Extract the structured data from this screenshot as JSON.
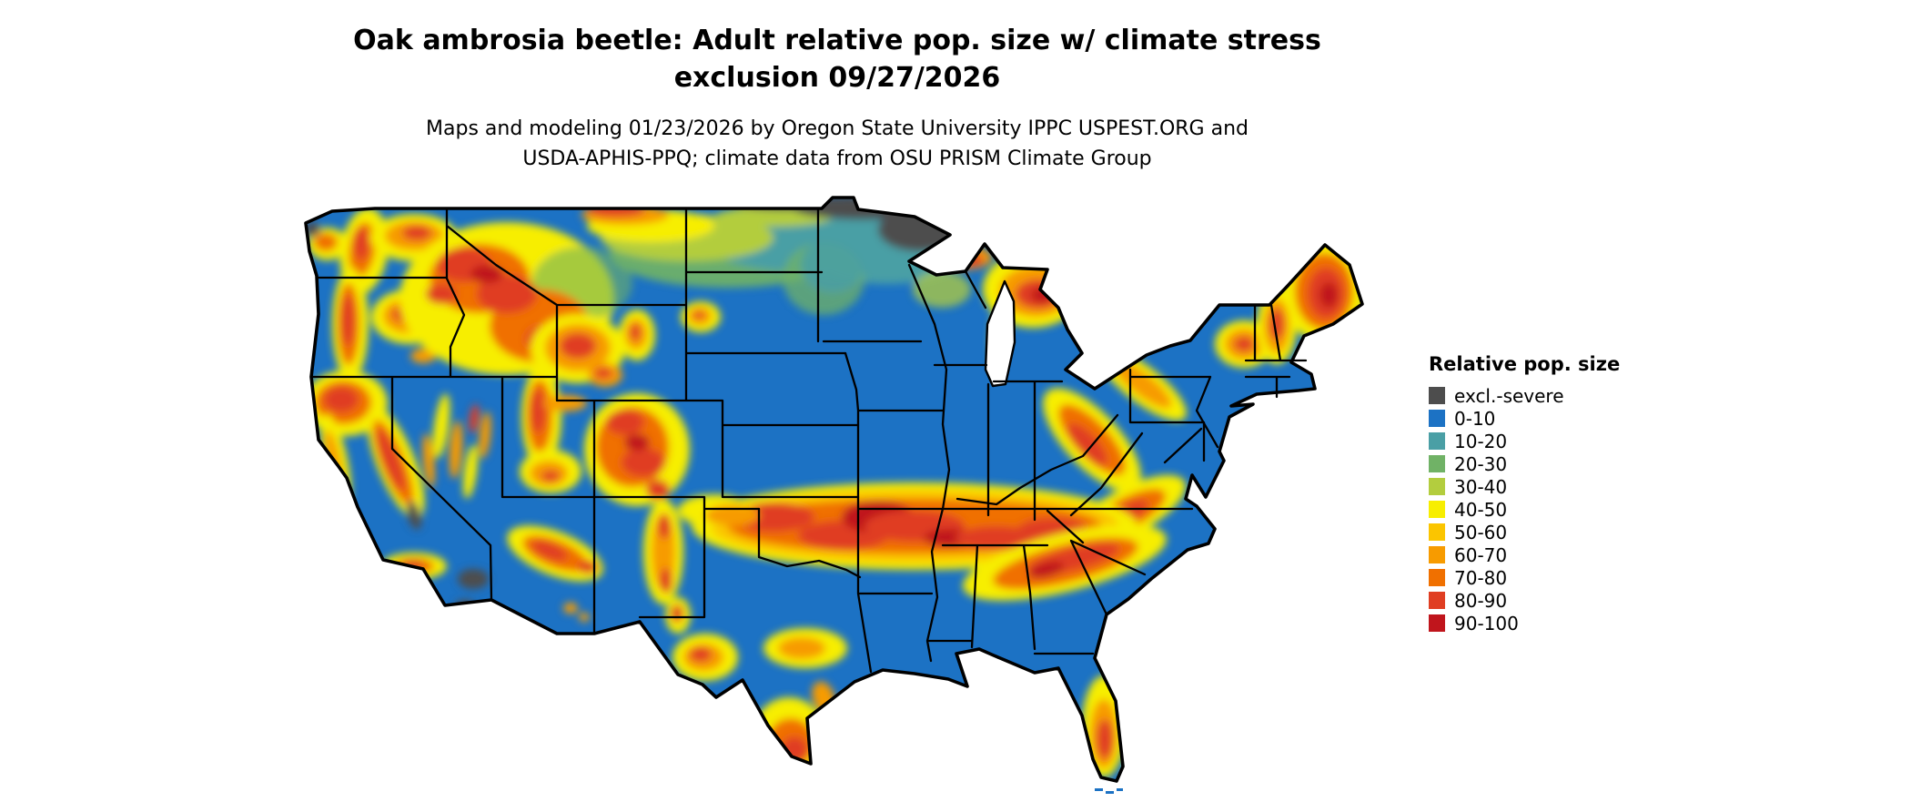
{
  "title": {
    "line1": "Oak ambrosia beetle: Adult relative pop. size w/ climate stress",
    "line2": "exclusion 09/27/2026"
  },
  "subtitle": {
    "line1": "Maps and modeling 01/23/2026 by Oregon State University IPPC USPEST.ORG and",
    "line2": "USDA-APHIS-PPQ; climate data from OSU PRISM Climate Group"
  },
  "legend": {
    "title": "Relative pop. size",
    "entries": [
      {
        "label": "excl.-severe",
        "color": "#4d4d4d"
      },
      {
        "label": "0-10",
        "color": "#1c72c4"
      },
      {
        "label": "10-20",
        "color": "#4a9fa5"
      },
      {
        "label": "20-30",
        "color": "#70b266"
      },
      {
        "label": "30-40",
        "color": "#b3cd3e"
      },
      {
        "label": "40-50",
        "color": "#f7ee00"
      },
      {
        "label": "50-60",
        "color": "#fbc500"
      },
      {
        "label": "60-70",
        "color": "#f79b00"
      },
      {
        "label": "70-80",
        "color": "#f07000"
      },
      {
        "label": "80-90",
        "color": "#e03e22"
      },
      {
        "label": "90-100",
        "color": "#c0151c"
      }
    ]
  }
}
